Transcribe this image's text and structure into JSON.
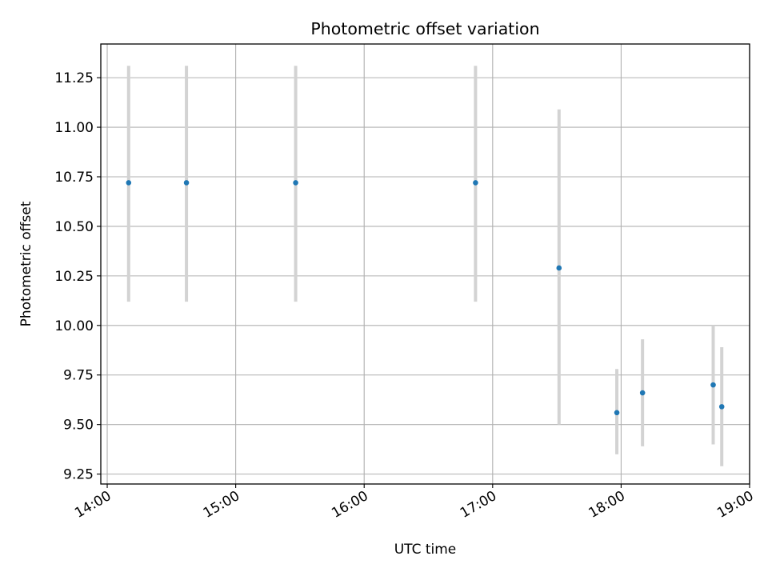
{
  "chart_data": {
    "type": "scatter",
    "title": "Photometric offset variation",
    "xlabel": "UTC time",
    "ylabel": "Photometric offset",
    "x_ticks": [
      "14:00",
      "15:00",
      "16:00",
      "17:00",
      "18:00",
      "19:00"
    ],
    "y_ticks": [
      "9.25",
      "9.50",
      "9.75",
      "10.00",
      "10.25",
      "10.50",
      "10.75",
      "11.00",
      "11.25"
    ],
    "xlim": [
      "13:57",
      "19:00"
    ],
    "ylim": [
      9.2,
      11.42
    ],
    "grid": true,
    "point_color": "#1f77b4",
    "errorbar_color": "#d3d3d3",
    "points": [
      {
        "x": "14:10",
        "y": 10.72,
        "ylow": 10.12,
        "yhigh": 11.31
      },
      {
        "x": "14:37",
        "y": 10.72,
        "ylow": 10.12,
        "yhigh": 11.31
      },
      {
        "x": "15:28",
        "y": 10.72,
        "ylow": 10.12,
        "yhigh": 11.31
      },
      {
        "x": "16:52",
        "y": 10.72,
        "ylow": 10.12,
        "yhigh": 11.31
      },
      {
        "x": "17:31",
        "y": 10.29,
        "ylow": 9.5,
        "yhigh": 11.09
      },
      {
        "x": "17:58",
        "y": 9.56,
        "ylow": 9.35,
        "yhigh": 9.78
      },
      {
        "x": "18:10",
        "y": 9.66,
        "ylow": 9.39,
        "yhigh": 9.93
      },
      {
        "x": "18:43",
        "y": 9.7,
        "ylow": 9.4,
        "yhigh": 10.0
      },
      {
        "x": "18:47",
        "y": 9.59,
        "ylow": 9.29,
        "yhigh": 9.89
      }
    ]
  }
}
